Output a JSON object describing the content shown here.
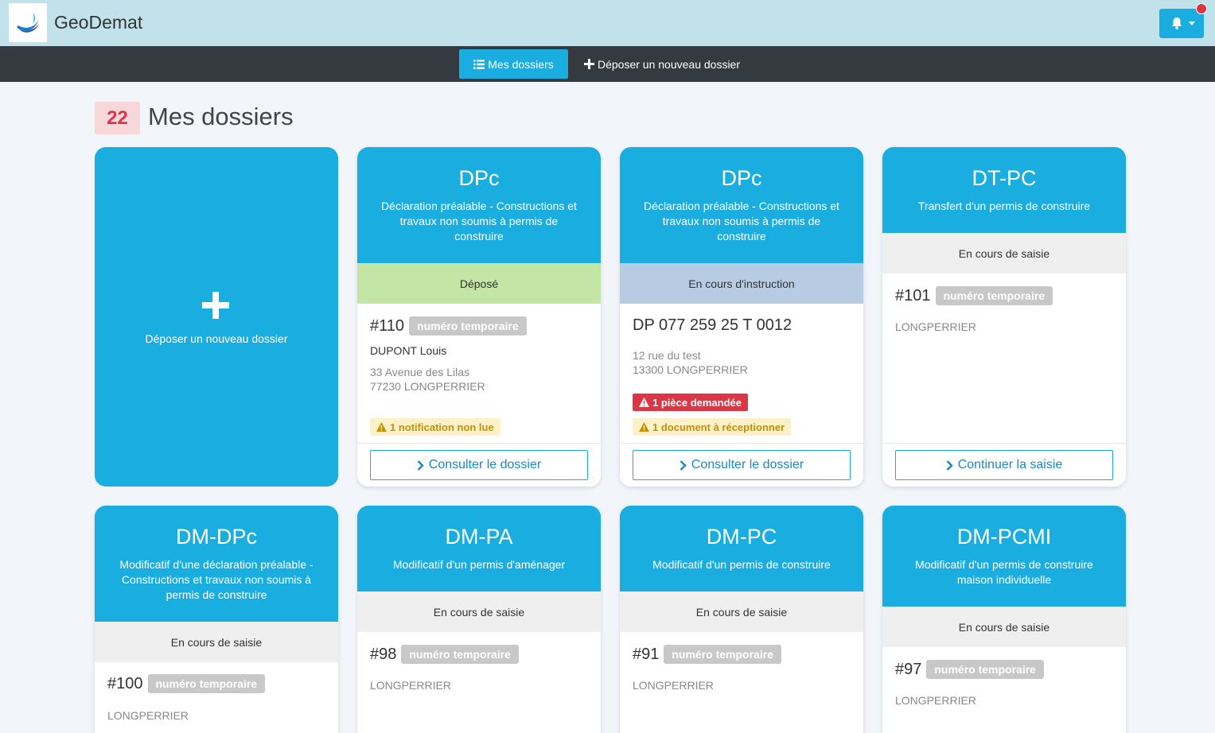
{
  "header": {
    "app_name": "GeoDemat",
    "logo_icon": "geodemat-logo-icon",
    "bell_icon": "bell-icon"
  },
  "nav": {
    "my_folders": "Mes dossiers",
    "new_folder": "Déposer un nouveau dossier"
  },
  "page": {
    "count": "22",
    "title": "Mes dossiers"
  },
  "new_card": {
    "label": "Déposer un nouveau dossier"
  },
  "cards": [
    {
      "code": "DPc",
      "desc": "Déclaration préalable - Constructions et travaux non soumis à permis de construire",
      "status": "Déposé",
      "number": "#110",
      "number_badge": "numéro temporaire",
      "owner": "DUPONT Louis",
      "addr1": "33 Avenue des Lilas",
      "addr2": "77230 LONGPERRIER",
      "alert_yellow": "1 notification non lue",
      "button": "Consulter le dossier"
    },
    {
      "code": "DPc",
      "desc": "Déclaration préalable - Constructions et travaux non soumis à permis de construire",
      "status": "En cours d'instruction",
      "number": "DP 077 259 25 T 0012",
      "addr1": "12 rue du test",
      "addr2": "13300 LONGPERRIER",
      "alert_red": "1 pièce demandée",
      "alert_yellow": "1 document à réceptionner",
      "button": "Consulter le dossier"
    },
    {
      "code": "DT-PC",
      "desc": "Transfert d'un permis de construire",
      "status": "En cours de saisie",
      "number": "#101",
      "number_badge": "numéro temporaire",
      "addr1": "LONGPERRIER",
      "button": "Continuer la saisie"
    },
    {
      "code": "DM-DPc",
      "desc": "Modificatif d'une déclaration préalable - Constructions et travaux non soumis à permis de construire",
      "status": "En cours de saisie",
      "number": "#100",
      "number_badge": "numéro temporaire",
      "addr1": "LONGPERRIER"
    },
    {
      "code": "DM-PA",
      "desc": "Modificatif d'un permis d'aménager",
      "status": "En cours de saisie",
      "number": "#98",
      "number_badge": "numéro temporaire",
      "addr1": "LONGPERRIER"
    },
    {
      "code": "DM-PC",
      "desc": "Modificatif d'un permis de construire",
      "status": "En cours de saisie",
      "number": "#91",
      "number_badge": "numéro temporaire",
      "addr1": "LONGPERRIER"
    },
    {
      "code": "DM-PCMI",
      "desc": "Modificatif d'un permis de construire maison individuelle",
      "status": "En cours de saisie",
      "number": "#97",
      "number_badge": "numéro temporaire",
      "addr1": "LONGPERRIER"
    }
  ],
  "colors": {
    "accent": "#1aaee0",
    "topbar": "#c1e2eb",
    "navbar": "#343a40",
    "depose": "#c3e6a6",
    "instruction": "#b7cce3",
    "danger": "#dc3545"
  }
}
